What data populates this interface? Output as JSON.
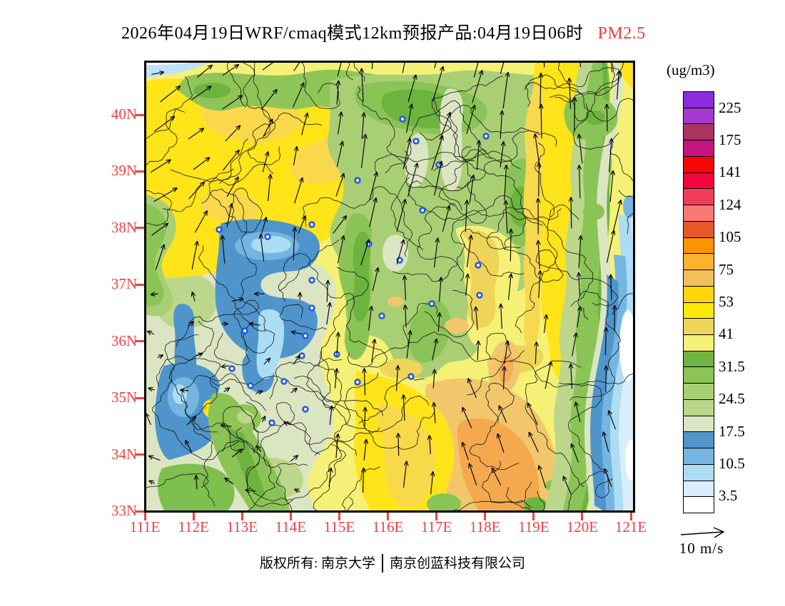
{
  "title": {
    "main": "2026年04月19日WRF/cmaq模式12km预报产品:04月19日06时",
    "species": "PM2.5"
  },
  "colorbar": {
    "units_label": "(ug/m3)",
    "tick_labels": [
      "225",
      "175",
      "141",
      "124",
      "105",
      "75",
      "53",
      "41",
      "31.5",
      "24.5",
      "17.5",
      "10.5",
      "3.5"
    ],
    "cell_colors_top_to_bottom": [
      "#8B2BDE",
      "#A23AD0",
      "#A93560",
      "#C5147F",
      "#FA0505",
      "#F8023F",
      "#F23C5C",
      "#F87A72",
      "#E9562A",
      "#FC9303",
      "#FBB32B",
      "#F2BF58",
      "#FFD60A",
      "#FFE90A",
      "#EFD45A",
      "#F4F176",
      "#6FB440",
      "#8BC456",
      "#A9CF74",
      "#BCD78C",
      "#DCE5C2",
      "#4F95CC",
      "#74B6E1",
      "#ACDDF4",
      "#D9EDFA",
      "#FFFFFF"
    ]
  },
  "axes": {
    "lat_labels": [
      "40N",
      "39N",
      "38N",
      "37N",
      "36N",
      "35N",
      "34N",
      "33N"
    ],
    "lon_labels": [
      "111E",
      "112E",
      "113E",
      "114E",
      "115E",
      "116E",
      "117E",
      "118E",
      "119E",
      "120E",
      "121E"
    ],
    "label_color": "#F04141"
  },
  "wind_legend": {
    "label": "10 m/s"
  },
  "footer": {
    "left": "版权所有: 南京大学",
    "right": "南京创蓝科技有限公司"
  },
  "map": {
    "boundary_seed": 77,
    "wind_seed": 1234,
    "marker_color": "#2458E6",
    "city_markers": [
      [
        299,
        168
      ],
      [
        105,
        237
      ],
      [
        173,
        247
      ],
      [
        235,
        230
      ],
      [
        315,
        257
      ],
      [
        235,
        308
      ],
      [
        362,
        82
      ],
      [
        381,
        113
      ],
      [
        413,
        146
      ],
      [
        479,
        106
      ],
      [
        390,
        210
      ],
      [
        358,
        280
      ],
      [
        468,
        287
      ],
      [
        470,
        329
      ],
      [
        403,
        341
      ],
      [
        374,
        443
      ],
      [
        235,
        347
      ],
      [
        333,
        358
      ],
      [
        226,
        386
      ],
      [
        221,
        414
      ],
      [
        270,
        412
      ],
      [
        299,
        451
      ],
      [
        123,
        432
      ],
      [
        141,
        379
      ],
      [
        149,
        456
      ],
      [
        196,
        450
      ],
      [
        226,
        489
      ],
      [
        179,
        508
      ]
    ]
  },
  "chart_data": {
    "type": "heatmap",
    "title": "2026年04月19日WRF/cmaq模式12km预报产品:04月19日06时 PM2.5",
    "variable": "PM2.5",
    "units": "ug/m3",
    "model": "WRF/cmaq 12km",
    "valid_time": "04月19日06时",
    "x_ticks": [
      "111E",
      "112E",
      "113E",
      "114E",
      "115E",
      "116E",
      "117E",
      "118E",
      "119E",
      "120E",
      "121E"
    ],
    "y_ticks": [
      "33N",
      "34N",
      "35N",
      "36N",
      "37N",
      "38N",
      "39N",
      "40N"
    ],
    "contour_levels": [
      3.5,
      10.5,
      17.5,
      24.5,
      31.5,
      41,
      53,
      75,
      105,
      124,
      141,
      175,
      225
    ],
    "legend_position": "right",
    "overlays": [
      "wind vectors with 10 m/s reference arrow",
      "administrative boundaries",
      "blue city ring markers"
    ],
    "field_summary": [
      {
        "region": "northwest (111-114.5E, 38-41N)",
        "pm25_range": "41-75"
      },
      {
        "region": "north-central mountains (114.5-117E, 36.5-41N)",
        "pm25_range": "17.5-31.5"
      },
      {
        "region": "western valleys (112.5-114E, 34.5-38N)",
        "pm25_range": "3.5-17.5"
      },
      {
        "region": "central-east plain (115-118E, 36-38.5N)",
        "pm25_range": "31.5-53"
      },
      {
        "region": "southeast (116-119E, 33-35.5N)",
        "pm25_range": "53-105"
      },
      {
        "region": "coastal band (119.5-120.5E)",
        "pm25_range": "17.5-31.5"
      },
      {
        "region": "offshore east of 120.5E",
        "pm25_range": "0-10.5"
      }
    ],
    "wind_summary": "southerly flow: vectors point N-NE over most of the domain, NE over the northwest, N-NNW offshore and in the far southeast; weak variable winds in the southwest valleys"
  }
}
